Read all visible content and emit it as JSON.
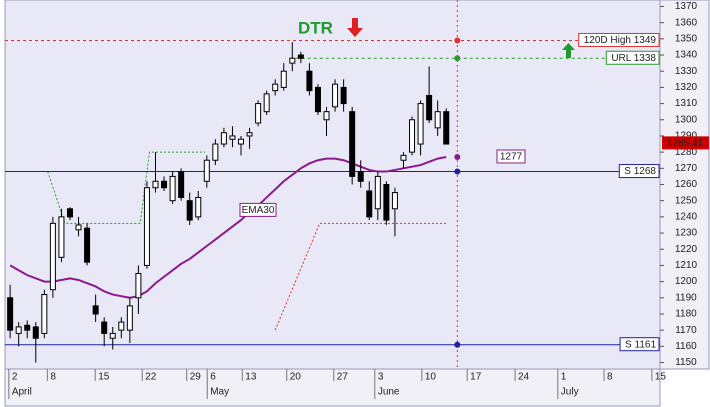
{
  "chart_data": {
    "type": "candlestick",
    "x": [
      0,
      1,
      2,
      3,
      4,
      5,
      6,
      7,
      8,
      9,
      10,
      11,
      12,
      13,
      14,
      15,
      16,
      17,
      18,
      19,
      20,
      21,
      22,
      23,
      24,
      25,
      26,
      27,
      28,
      29,
      30,
      31,
      32,
      33,
      34,
      35,
      36,
      37,
      38,
      39,
      40,
      41,
      42,
      43,
      44,
      45,
      46,
      47,
      48,
      49,
      50,
      51
    ],
    "open": [
      1190,
      1168,
      1173,
      1172,
      1168,
      1195,
      1215,
      1245,
      1232,
      1233,
      1185,
      1175,
      1165,
      1170,
      1170,
      1190,
      1210,
      1258,
      1262,
      1250,
      1268,
      1250,
      1240,
      1262,
      1275,
      1285,
      1288,
      1285,
      1290,
      1298,
      1305,
      1318,
      1320,
      1335,
      1340,
      1330,
      1320,
      1300,
      1308,
      1320,
      1305,
      1268,
      1256,
      1245,
      1260,
      1245,
      1275,
      1280,
      1285,
      1315,
      1295,
      1305
    ],
    "high": [
      1198,
      1175,
      1176,
      1175,
      1195,
      1240,
      1245,
      1246,
      1240,
      1236,
      1192,
      1178,
      1172,
      1178,
      1190,
      1210,
      1262,
      1280,
      1265,
      1268,
      1270,
      1255,
      1256,
      1278,
      1288,
      1295,
      1296,
      1290,
      1295,
      1312,
      1318,
      1325,
      1335,
      1348,
      1342,
      1335,
      1322,
      1308,
      1325,
      1325,
      1308,
      1275,
      1262,
      1268,
      1262,
      1258,
      1280,
      1302,
      1312,
      1333,
      1312,
      1307
    ],
    "low": [
      1165,
      1160,
      1165,
      1150,
      1165,
      1190,
      1212,
      1238,
      1228,
      1210,
      1175,
      1160,
      1158,
      1165,
      1162,
      1180,
      1208,
      1255,
      1256,
      1248,
      1250,
      1235,
      1238,
      1258,
      1272,
      1283,
      1283,
      1278,
      1282,
      1296,
      1303,
      1315,
      1318,
      1330,
      1335,
      1315,
      1303,
      1290,
      1305,
      1305,
      1260,
      1258,
      1238,
      1238,
      1235,
      1228,
      1270,
      1278,
      1278,
      1298,
      1290,
      1285
    ],
    "close": [
      1170,
      1172,
      1170,
      1165,
      1192,
      1236,
      1240,
      1240,
      1235,
      1212,
      1180,
      1168,
      1168,
      1175,
      1185,
      1205,
      1258,
      1262,
      1258,
      1265,
      1252,
      1238,
      1252,
      1275,
      1285,
      1292,
      1290,
      1288,
      1292,
      1310,
      1316,
      1322,
      1330,
      1338,
      1338,
      1318,
      1305,
      1305,
      1322,
      1310,
      1265,
      1262,
      1240,
      1265,
      1238,
      1255,
      1278,
      1300,
      1310,
      1300,
      1305,
      1285
    ],
    "ema": {
      "name": "EMA30",
      "color": "#8b1a8b",
      "values": [
        1210,
        1207,
        1204,
        1202,
        1200,
        1200,
        1201,
        1202,
        1201,
        1199,
        1197,
        1194,
        1192,
        1191,
        1190,
        1191,
        1194,
        1199,
        1203,
        1207,
        1211,
        1214,
        1218,
        1222,
        1226,
        1230,
        1234,
        1238,
        1243,
        1247,
        1252,
        1257,
        1262,
        1266,
        1270,
        1273,
        1275,
        1276,
        1276,
        1275,
        1273,
        1271,
        1269,
        1268,
        1268,
        1269,
        1270,
        1271,
        1272,
        1274,
        1276,
        1277
      ]
    },
    "ema_label": 1277,
    "last_price": 1285.41,
    "title": "DTR",
    "levels": [
      {
        "label": "120D High 1349",
        "value": 1349,
        "color": "#e03030",
        "dash": true
      },
      {
        "label": "URL 1338",
        "value": 1338,
        "color": "#2a9a2a",
        "dash": true,
        "x_start": 32.7
      },
      {
        "label": "S 1268",
        "value": 1268,
        "color": "#2020a0",
        "dash": false
      },
      {
        "label": "S 1161",
        "value": 1161,
        "color": "#2020a0",
        "dash": false
      }
    ],
    "marker_x": 52.3,
    "overlays": [
      {
        "color": "#2a9a2a",
        "x": [
          4.4,
          6.4,
          15.2,
          16.3,
          22.8
        ],
        "y": [
          1268,
          1236,
          1236,
          1280,
          1280
        ]
      },
      {
        "color": "#e03030",
        "x": [
          31,
          36.2,
          51.2
        ],
        "y": [
          1170,
          1236,
          1236
        ]
      }
    ],
    "xlim": [
      -0.6,
      76.0
    ],
    "ylim": [
      1146,
      1374
    ],
    "yticks": [
      1150,
      1160,
      1170,
      1180,
      1190,
      1200,
      1210,
      1220,
      1230,
      1240,
      1250,
      1260,
      1270,
      1280,
      1290,
      1300,
      1310,
      1320,
      1330,
      1340,
      1350,
      1360,
      1370
    ],
    "xticks": [
      {
        "value": 0.2,
        "label": "2"
      },
      {
        "value": 4.7,
        "label": "8"
      },
      {
        "value": 10.3,
        "label": "15"
      },
      {
        "value": 15.8,
        "label": "22"
      },
      {
        "value": 21,
        "label": "29"
      },
      {
        "value": 23.4,
        "label": "6"
      },
      {
        "value": 27.5,
        "label": "13"
      },
      {
        "value": 32.7,
        "label": "20"
      },
      {
        "value": 38.2,
        "label": "27"
      },
      {
        "value": 43.0,
        "label": "3"
      },
      {
        "value": 48.5,
        "label": "10"
      },
      {
        "value": 53.8,
        "label": "17"
      },
      {
        "value": 59.4,
        "label": "24"
      },
      {
        "value": 64.4,
        "label": "1"
      },
      {
        "value": 69.8,
        "label": "8"
      },
      {
        "value": 75.4,
        "label": "15"
      }
    ],
    "months": [
      {
        "value": 0.2,
        "label": "April"
      },
      {
        "value": 23.4,
        "label": "May"
      },
      {
        "value": 43.0,
        "label": "June"
      },
      {
        "value": 64.4,
        "label": "July"
      }
    ]
  }
}
